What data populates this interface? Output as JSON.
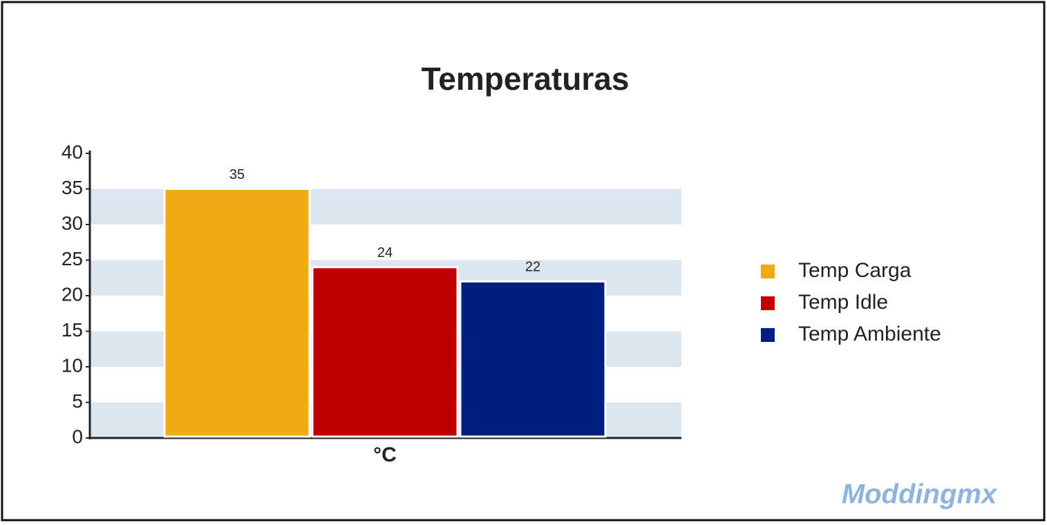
{
  "chart_data": {
    "type": "bar",
    "title": "Temperaturas",
    "x_label": "°C",
    "categories": [
      "°C"
    ],
    "series": [
      {
        "name": "Temp Carga",
        "color": "#f0ab12",
        "values": [
          35
        ]
      },
      {
        "name": "Temp Idle",
        "color": "#c00000",
        "values": [
          24
        ]
      },
      {
        "name": "Temp Ambiente",
        "color": "#002080",
        "values": [
          22
        ]
      }
    ],
    "ylim": [
      0,
      40
    ],
    "yticks": [
      0,
      5,
      10,
      15,
      20,
      25,
      30,
      35,
      40
    ],
    "grid": "bands",
    "band_color": "#dce6f0",
    "legend": "right"
  },
  "watermark": "Moddingmx"
}
